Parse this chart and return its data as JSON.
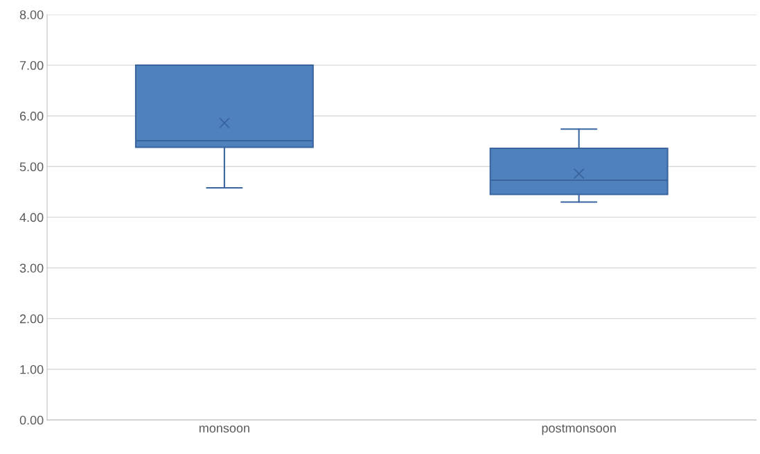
{
  "chart_data": {
    "type": "box",
    "categories": [
      "monsoon",
      "postmonsoon"
    ],
    "boxes": [
      {
        "low": 4.58,
        "q1": 5.38,
        "median": 5.51,
        "q3": 7.0,
        "high": 7.0,
        "mean": 5.86
      },
      {
        "low": 4.3,
        "q1": 4.45,
        "median": 4.73,
        "q3": 5.36,
        "high": 5.74,
        "mean": 4.86
      }
    ],
    "color": "#4f81bd",
    "ylim": [
      0,
      8
    ],
    "yticks": [
      {
        "value": 0,
        "label": "0.00"
      },
      {
        "value": 1,
        "label": "1.00"
      },
      {
        "value": 2,
        "label": "2.00"
      },
      {
        "value": 3,
        "label": "3.00"
      },
      {
        "value": 4,
        "label": "4.00"
      },
      {
        "value": 5,
        "label": "5.00"
      },
      {
        "value": 6,
        "label": "6.00"
      },
      {
        "value": 7,
        "label": "7.00"
      },
      {
        "value": 8,
        "label": "8.00"
      }
    ],
    "grid": "y",
    "marker": "cross"
  }
}
